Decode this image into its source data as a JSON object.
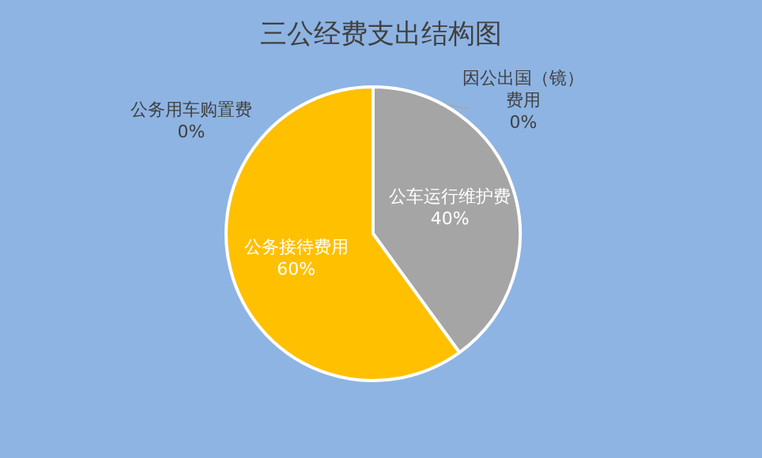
{
  "chart_data": {
    "type": "pie",
    "title": "三公经费支出结构图",
    "categories": [
      "因公出国（镜）费用",
      "公务用车购置费",
      "公车运行维护费",
      "公务接待费用"
    ],
    "values": [
      0,
      0,
      40,
      60
    ],
    "colors": [
      "#5b9bd5",
      "#ed7d31",
      "#a5a5a5",
      "#ffc000"
    ],
    "value_labels": [
      "0%",
      "0%",
      "40%",
      "60%"
    ]
  }
}
